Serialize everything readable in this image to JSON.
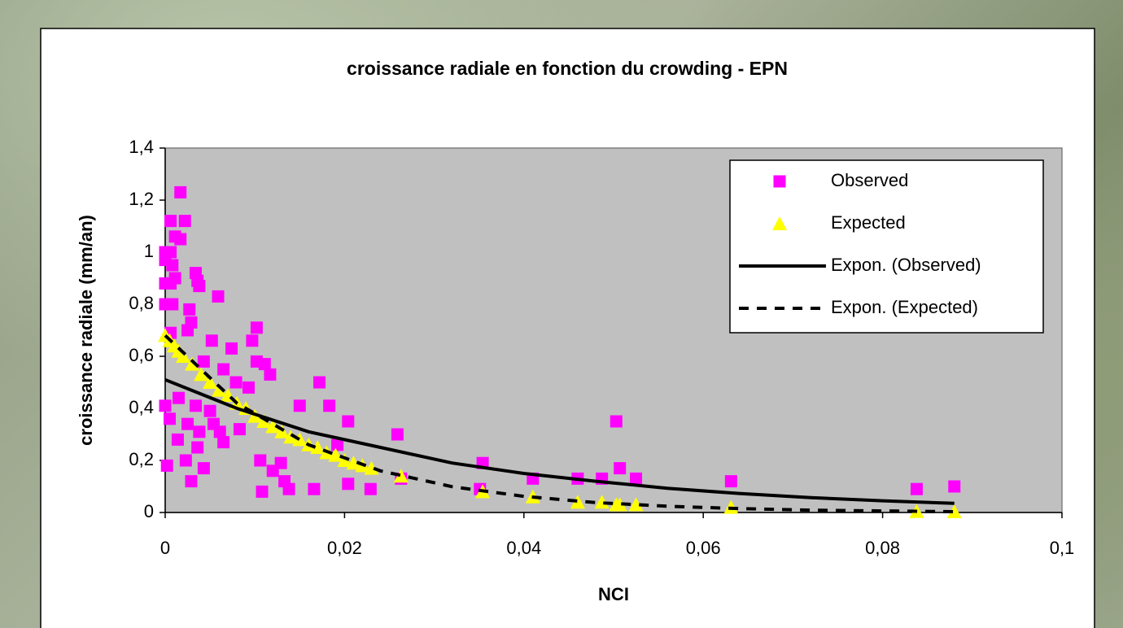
{
  "chart_data": {
    "type": "scatter",
    "title": "croissance radiale en fonction du crowding - EPN",
    "x_label": "NCI",
    "y_label": "croissance radiale (mm/an)",
    "xlim": [
      0,
      0.1
    ],
    "ylim": [
      0,
      1.4
    ],
    "xticks": [
      0,
      {
        "value": 0.02,
        "label": "0,02"
      },
      {
        "value": 0.04,
        "label": "0,04"
      },
      {
        "value": 0.06,
        "label": "0,06"
      },
      {
        "value": 0.08,
        "label": "0,08"
      },
      {
        "value": 0.1,
        "label": "0,1"
      }
    ],
    "yticks": [
      0,
      {
        "value": 0.2,
        "label": "0,2"
      },
      {
        "value": 0.4,
        "label": "0,4"
      },
      {
        "value": 0.6,
        "label": "0,6"
      },
      {
        "value": 0.8,
        "label": "0,8"
      },
      1,
      {
        "value": 1.2,
        "label": "1,2"
      },
      {
        "value": 1.4,
        "label": "1,4"
      }
    ],
    "legend": "top-right",
    "series": [
      {
        "name": "Observed",
        "kind": "markers",
        "marker": "square",
        "color": "#ff00ff",
        "x": [
          0.0017,
          0.0006,
          0.0022,
          0.0011,
          0.0017,
          0,
          0.0006,
          0,
          0.0008,
          0,
          0.0006,
          0.0011,
          0.0034,
          0.0036,
          0.0038,
          0.0059,
          0,
          0.0008,
          0.0027,
          0.0029,
          0.0025,
          0.0102,
          0.0052,
          0.0006,
          0.0074,
          0.0097,
          0.0043,
          0.0102,
          0.0111,
          0.0117,
          0.0065,
          0.0079,
          0.0093,
          0.0172,
          0,
          0.0005,
          0.0015,
          0.0034,
          0.005,
          0.0054,
          0.0061,
          0.0065,
          0.0014,
          0.0025,
          0.0038,
          0.0036,
          0.0043,
          0.0023,
          0.0029,
          0.0002,
          0.0083,
          0.0183,
          0.015,
          0.0204,
          0.0106,
          0.0108,
          0.012,
          0.0129,
          0.0133,
          0.0138,
          0.0166,
          0.0204,
          0.0229,
          0.0192,
          0.0259,
          0.0263,
          0.0354,
          0.0351,
          0.041,
          0.046,
          0.0487,
          0.0503,
          0.0507,
          0.0525,
          0.0631,
          0.0838,
          0.088
        ],
        "values": [
          1.23,
          1.12,
          1.12,
          1.06,
          1.05,
          1.0,
          1.0,
          0.97,
          0.95,
          0.88,
          0.88,
          0.9,
          0.92,
          0.89,
          0.87,
          0.83,
          0.8,
          0.8,
          0.78,
          0.73,
          0.7,
          0.71,
          0.66,
          0.69,
          0.63,
          0.66,
          0.58,
          0.58,
          0.57,
          0.53,
          0.55,
          0.5,
          0.48,
          0.5,
          0.41,
          0.36,
          0.44,
          0.41,
          0.39,
          0.34,
          0.31,
          0.27,
          0.28,
          0.34,
          0.31,
          0.25,
          0.17,
          0.2,
          0.12,
          0.18,
          0.32,
          0.41,
          0.41,
          0.35,
          0.2,
          0.08,
          0.16,
          0.19,
          0.12,
          0.09,
          0.09,
          0.11,
          0.09,
          0.26,
          0.3,
          0.13,
          0.19,
          0.09,
          0.13,
          0.13,
          0.13,
          0.35,
          0.17,
          0.13,
          0.12,
          0.09,
          0.1
        ]
      },
      {
        "name": "Expected",
        "kind": "markers",
        "marker": "triangle",
        "color": "#ffff00",
        "x": [
          0,
          0.0005,
          0.001,
          0.0015,
          0.002,
          0.003,
          0.004,
          0.005,
          0.006,
          0.007,
          0.008,
          0.009,
          0.01,
          0.011,
          0.012,
          0.013,
          0.014,
          0.015,
          0.016,
          0.017,
          0.018,
          0.019,
          0.02,
          0.021,
          0.022,
          0.023,
          0.0263,
          0.0354,
          0.041,
          0.046,
          0.0487,
          0.0503,
          0.0507,
          0.0525,
          0.0631,
          0.0838,
          0.088
        ],
        "values": [
          0.68,
          0.66,
          0.64,
          0.62,
          0.6,
          0.57,
          0.53,
          0.5,
          0.47,
          0.45,
          0.42,
          0.4,
          0.37,
          0.35,
          0.33,
          0.31,
          0.29,
          0.28,
          0.26,
          0.25,
          0.23,
          0.22,
          0.2,
          0.19,
          0.18,
          0.17,
          0.14,
          0.08,
          0.06,
          0.04,
          0.04,
          0.03,
          0.03,
          0.03,
          0.02,
          0.004,
          0.003
        ]
      },
      {
        "name": "Expon. (Observed)",
        "kind": "line",
        "dashed": false,
        "color": "#000000",
        "x": [
          0,
          0.008,
          0.016,
          0.024,
          0.032,
          0.04,
          0.048,
          0.056,
          0.064,
          0.072,
          0.08,
          0.088
        ],
        "values": [
          0.51,
          0.4,
          0.31,
          0.25,
          0.19,
          0.15,
          0.12,
          0.093,
          0.073,
          0.057,
          0.045,
          0.035
        ]
      },
      {
        "name": "Expon. (Expected)",
        "kind": "line",
        "dashed": true,
        "color": "#000000",
        "x": [
          0,
          0.008,
          0.016,
          0.024,
          0.032,
          0.04,
          0.048,
          0.056,
          0.064,
          0.072,
          0.08,
          0.088
        ],
        "values": [
          0.68,
          0.42,
          0.26,
          0.16,
          0.099,
          0.062,
          0.038,
          0.024,
          0.015,
          0.009,
          0.006,
          0.003
        ]
      }
    ]
  }
}
